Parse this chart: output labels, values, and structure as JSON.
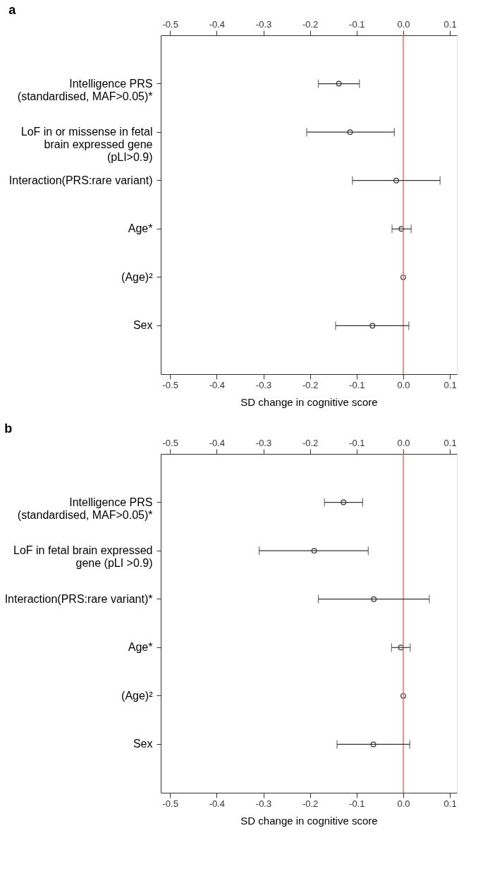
{
  "chart_data": [
    {
      "type": "scatter",
      "title": "a",
      "xlabel": "SD change in cognitive score",
      "orientation": "horizontal",
      "categories": [
        "Intelligence PRS\n(standardised, MAF>0.05)*",
        "LoF in or missense in fetal\nbrain expressed gene\n(pLI>0.9)",
        "Interaction(PRS:rare variant)",
        "Age*",
        "(Age)²",
        "Sex"
      ],
      "values": [
        -0.138,
        -0.114,
        -0.015,
        -0.004,
        0.0,
        -0.066
      ],
      "errors": [
        [
          -0.182,
          -0.094
        ],
        [
          -0.207,
          -0.019
        ],
        [
          -0.109,
          0.079
        ],
        [
          -0.024,
          0.017
        ],
        null,
        [
          -0.145,
          0.012
        ]
      ],
      "color": "#333333",
      "marker": "circle",
      "grid": false,
      "xlim": [
        -0.52,
        0.115
      ],
      "xticks": [
        -0.5,
        -0.4,
        -0.3,
        -0.2,
        -0.1,
        {
          "value": 0,
          "label": "0.0"
        },
        0.1
      ],
      "x2lim": [
        -0.52,
        0.115
      ],
      "x2ticks": [
        -0.5,
        -0.4,
        -0.3,
        -0.2,
        -0.1,
        {
          "value": 0,
          "label": "0.0"
        },
        0.1
      ],
      "ref_lines": [
        {
          "axis": "x",
          "value": 0,
          "color": "#f26d6d"
        }
      ]
    },
    {
      "type": "scatter",
      "title": "b",
      "xlabel": "SD change in cognitive score",
      "orientation": "horizontal",
      "categories": [
        "Intelligence PRS\n(standardised, MAF>0.05)*",
        "LoF in fetal brain expressed\ngene (pLI >0.9)",
        "Interaction(PRS:rare variant)*",
        "Age*",
        "(Age)²",
        "Sex"
      ],
      "values": [
        -0.128,
        -0.191,
        -0.063,
        -0.005,
        0.0,
        -0.064
      ],
      "errors": [
        [
          -0.169,
          -0.087
        ],
        [
          -0.309,
          -0.075
        ],
        [
          -0.182,
          0.056
        ],
        [
          -0.025,
          0.015
        ],
        null,
        [
          -0.142,
          0.014
        ]
      ],
      "color": "#333333",
      "marker": "circle",
      "grid": false,
      "xlim": [
        -0.52,
        0.115
      ],
      "xticks": [
        -0.5,
        -0.4,
        -0.3,
        -0.2,
        -0.1,
        {
          "value": 0,
          "label": "0.0"
        },
        0.1
      ],
      "x2lim": [
        -0.52,
        0.115
      ],
      "x2ticks": [
        -0.5,
        -0.4,
        -0.3,
        -0.2,
        -0.1,
        {
          "value": 0,
          "label": "0.0"
        },
        0.1
      ],
      "ref_lines": [
        {
          "axis": "x",
          "value": 0,
          "color": "#f26d6d"
        }
      ]
    }
  ]
}
